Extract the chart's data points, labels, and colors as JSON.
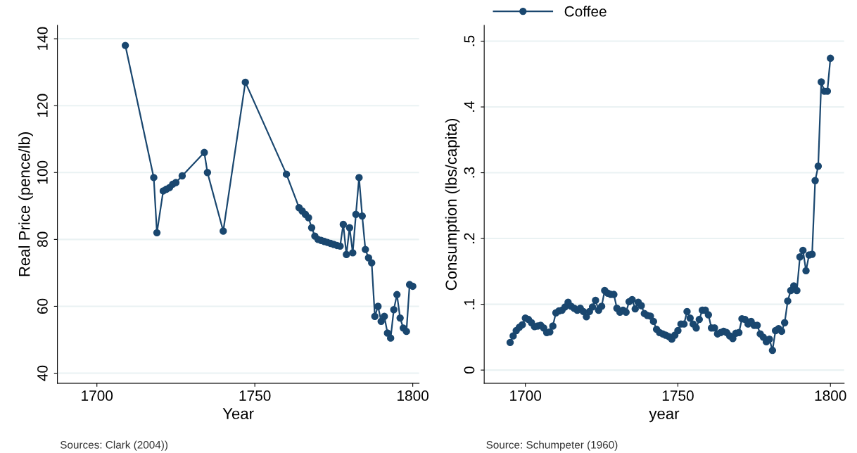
{
  "chart_data": [
    {
      "type": "line",
      "xlabel": "Year",
      "ylabel": "Real Price (pence/lb)",
      "marker": "circle",
      "grid": "y",
      "legend": false,
      "xlim": [
        1687.5,
        1802
      ],
      "ylim": [
        37,
        144
      ],
      "xticks": [
        1700,
        1750,
        1800
      ],
      "yticks": [
        40,
        60,
        80,
        100,
        120,
        140
      ],
      "annotations": [
        "Sources: Clark (2004))"
      ],
      "series": [
        {
          "color": "#1a476f",
          "x": [
            1709,
            1718,
            1719,
            1721,
            1722,
            1723,
            1724,
            1725,
            1727,
            1734,
            1735,
            1740,
            1747,
            1760,
            1764,
            1765,
            1766,
            1767,
            1768,
            1769,
            1770,
            1771,
            1772,
            1773,
            1774,
            1775,
            1776,
            1777,
            1778,
            1779,
            1780,
            1781,
            1782,
            1783,
            1784,
            1785,
            1786,
            1787,
            1788,
            1789,
            1790,
            1791,
            1792,
            1793,
            1794,
            1795,
            1796,
            1797,
            1798,
            1799,
            1800
          ],
          "values": [
            138,
            98.5,
            82,
            94.5,
            95,
            95.5,
            96.5,
            97,
            99,
            106,
            100,
            82.5,
            127,
            99.5,
            89.5,
            88.5,
            87.5,
            86.5,
            83.5,
            81,
            80,
            79.7,
            79.4,
            79.1,
            78.8,
            78.5,
            78.2,
            78,
            84.5,
            75.5,
            83.5,
            76,
            87.5,
            98.5,
            87,
            77,
            74.5,
            73,
            57,
            60,
            55.5,
            57,
            52,
            50.5,
            59,
            63.5,
            56.5,
            53.5,
            52.5,
            66.5,
            66
          ]
        }
      ]
    },
    {
      "type": "line",
      "xlabel": "year",
      "ylabel": "Consumption (lbs/capita)",
      "marker": "circle",
      "grid": "y",
      "legend": "top left",
      "xlim": [
        1686.5,
        1804.5
      ],
      "ylim": [
        -0.02,
        0.524
      ],
      "xticks": [
        1700,
        1750,
        1800
      ],
      "yticks": [
        {
          "value": 0,
          "label": "0"
        },
        {
          "value": 0.1,
          "label": ".1"
        },
        {
          "value": 0.2,
          "label": ".2"
        },
        {
          "value": 0.3,
          "label": ".3"
        },
        {
          "value": 0.4,
          "label": ".4"
        },
        {
          "value": 0.5,
          "label": ".5"
        }
      ],
      "annotations": [
        "Source: Schumpeter (1960)"
      ],
      "series": [
        {
          "name": "Coffee",
          "color": "#1a476f",
          "x": [
            1695,
            1696,
            1697,
            1698,
            1699,
            1700,
            1701,
            1702,
            1703,
            1704,
            1705,
            1706,
            1707,
            1708,
            1709,
            1710,
            1711,
            1712,
            1713,
            1714,
            1715,
            1716,
            1717,
            1718,
            1719,
            1720,
            1721,
            1722,
            1723,
            1724,
            1725,
            1726,
            1727,
            1728,
            1729,
            1730,
            1731,
            1732,
            1733,
            1734,
            1735,
            1736,
            1737,
            1738,
            1739,
            1740,
            1741,
            1742,
            1743,
            1744,
            1745,
            1746,
            1747,
            1748,
            1749,
            1750,
            1751,
            1752,
            1753,
            1754,
            1755,
            1756,
            1757,
            1758,
            1759,
            1760,
            1761,
            1762,
            1763,
            1764,
            1765,
            1766,
            1767,
            1768,
            1769,
            1770,
            1771,
            1772,
            1773,
            1774,
            1775,
            1776,
            1777,
            1778,
            1779,
            1780,
            1781,
            1782,
            1783,
            1784,
            1785,
            1786,
            1787,
            1788,
            1789,
            1790,
            1791,
            1792,
            1793,
            1794,
            1795,
            1796,
            1797,
            1798,
            1799,
            1800
          ],
          "values": [
            0.042,
            0.052,
            0.06,
            0.065,
            0.069,
            0.079,
            0.077,
            0.072,
            0.066,
            0.067,
            0.068,
            0.064,
            0.057,
            0.058,
            0.067,
            0.087,
            0.09,
            0.091,
            0.096,
            0.103,
            0.097,
            0.094,
            0.091,
            0.094,
            0.089,
            0.081,
            0.089,
            0.096,
            0.106,
            0.091,
            0.097,
            0.121,
            0.117,
            0.115,
            0.115,
            0.094,
            0.088,
            0.091,
            0.088,
            0.104,
            0.107,
            0.093,
            0.103,
            0.098,
            0.086,
            0.083,
            0.082,
            0.074,
            0.062,
            0.057,
            0.055,
            0.053,
            0.051,
            0.047,
            0.053,
            0.06,
            0.07,
            0.07,
            0.089,
            0.079,
            0.07,
            0.064,
            0.077,
            0.091,
            0.091,
            0.084,
            0.064,
            0.064,
            0.055,
            0.057,
            0.059,
            0.057,
            0.052,
            0.048,
            0.056,
            0.057,
            0.078,
            0.077,
            0.07,
            0.074,
            0.068,
            0.068,
            0.055,
            0.05,
            0.043,
            0.047,
            0.03,
            0.06,
            0.063,
            0.059,
            0.072,
            0.105,
            0.121,
            0.128,
            0.121,
            0.172,
            0.182,
            0.151,
            0.175,
            0.176,
            0.288,
            0.31,
            0.438,
            0.424,
            0.424,
            0.474
          ]
        }
      ]
    }
  ]
}
